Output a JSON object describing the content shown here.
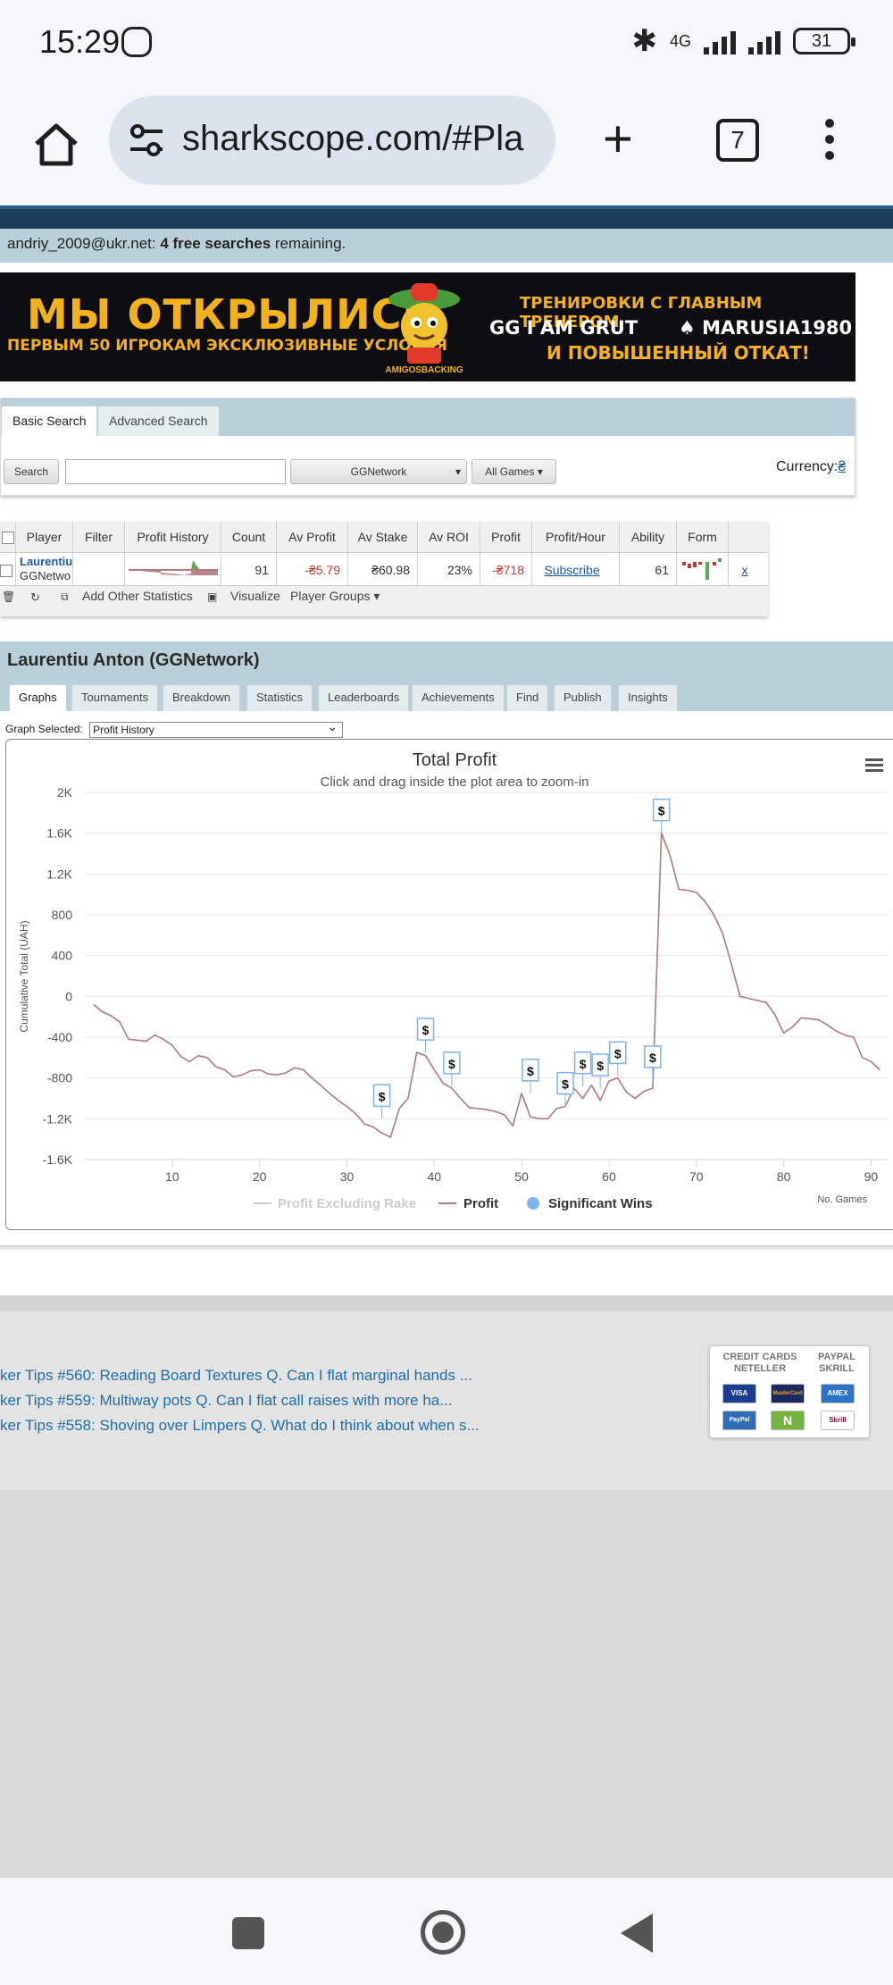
{
  "status_bar": {
    "time": "15:29",
    "network": "4G",
    "battery": "31"
  },
  "browser": {
    "url": "sharkscope.com/#Pla",
    "tab_count": "7"
  },
  "site": {
    "account_email": "andriy_2009@ukr.net:",
    "free_searches": "4 free searches",
    "remaining": "remaining."
  },
  "banner": {
    "headline": "МЫ ОТКРЫЛИСЬ",
    "subline": "ПЕРВЫМ 50 ИГРОКАМ ЭКСКЛЮЗИВНЫЕ УСЛОВИЯ",
    "brand": "AMIGOSBACKING",
    "right_line1": "ТРЕНИРОВКИ С ГЛАВНЫМ ТРЕНЕРОМ",
    "right_line2a": "GG I AM GRUT",
    "right_line2b": "♠ MARUSIA1980",
    "right_line3": "И ПОВЫШЕННЫЙ ОТКАТ!"
  },
  "search": {
    "tab_basic": "Basic Search",
    "tab_advanced": "Advanced Search",
    "search_button": "Search",
    "network_select": "GGNetwork",
    "games_select": "All Games",
    "currency_label": "Currency:",
    "currency_value": "₴"
  },
  "player_table": {
    "headers": [
      "Player",
      "Filter",
      "Profit History",
      "Count",
      "Av Profit",
      "Av Stake",
      "Av ROI",
      "Profit",
      "Profit/Hour",
      "Ability",
      "Form"
    ],
    "row": {
      "player_name": "Laurentiu",
      "player_network": "GGNetwo",
      "count": "91",
      "av_profit": "-₴5.79",
      "av_stake": "₴60.98",
      "av_roi": "23%",
      "profit": "-₴718",
      "profit_hour": "Subscribe",
      "ability": "61",
      "remove": "x"
    },
    "toolbar": {
      "add_stats": "Add Other Statistics",
      "visualize": "Visualize",
      "player_groups": "Player Groups"
    }
  },
  "player_detail": {
    "title": "Laurentiu Anton (GGNetwork)",
    "tabs": [
      "Graphs",
      "Tournaments",
      "Breakdown",
      "Statistics",
      "Leaderboards",
      "Achievements",
      "Find",
      "Publish",
      "Insights"
    ],
    "graph_selected_label": "Graph Selected:",
    "graph_selected_value": "Profit History"
  },
  "chart_data": {
    "type": "line",
    "title": "Total Profit",
    "subtitle": "Click and drag inside the plot area to zoom-in",
    "ylabel": "Cumulative Total (UAH)",
    "xlabel": "No. Games",
    "ylim": [
      -1600,
      2000
    ],
    "xlim": [
      0,
      92
    ],
    "y_ticks": [
      "2K",
      "1.6K",
      "1.2K",
      "800",
      "400",
      "0",
      "-400",
      "-800",
      "-1.2K",
      "-1.6K"
    ],
    "x_ticks": [
      "10",
      "20",
      "30",
      "40",
      "50",
      "60",
      "70",
      "80",
      "90"
    ],
    "legend": [
      "Profit Excluding Rake",
      "Profit",
      "Significant Wins"
    ],
    "legend_position": "bottom",
    "colors": {
      "profit": "#b07a7e",
      "rake": "#cccccc",
      "wins": "#7cb5ec"
    },
    "series": [
      {
        "name": "Profit",
        "x": [
          1,
          2,
          3,
          4,
          5,
          6,
          7,
          8,
          9,
          10,
          11,
          12,
          13,
          14,
          15,
          16,
          17,
          18,
          19,
          20,
          21,
          22,
          23,
          24,
          25,
          26,
          27,
          28,
          29,
          30,
          31,
          32,
          33,
          34,
          35,
          36,
          37,
          38,
          39,
          40,
          41,
          42,
          43,
          44,
          45,
          46,
          47,
          48,
          49,
          50,
          51,
          52,
          53,
          54,
          55,
          56,
          57,
          58,
          59,
          60,
          61,
          62,
          63,
          64,
          65,
          66,
          67,
          68,
          69,
          70,
          71,
          72,
          73,
          74,
          75,
          76,
          77,
          78,
          79,
          80,
          81,
          82,
          83,
          84,
          85,
          86,
          87,
          88,
          89,
          90,
          91
        ],
        "values": [
          -80,
          -150,
          -190,
          -250,
          -420,
          -430,
          -440,
          -380,
          -420,
          -480,
          -590,
          -640,
          -580,
          -600,
          -690,
          -720,
          -790,
          -770,
          -730,
          -720,
          -760,
          -770,
          -750,
          -700,
          -720,
          -800,
          -870,
          -950,
          -1020,
          -1080,
          -1150,
          -1250,
          -1280,
          -1340,
          -1380,
          -1100,
          -1000,
          -550,
          -580,
          -720,
          -850,
          -900,
          -1000,
          -1090,
          -1100,
          -1110,
          -1130,
          -1160,
          -1270,
          -950,
          -1180,
          -1200,
          -1200,
          -1100,
          -1080,
          -900,
          -1000,
          -870,
          -1020,
          -830,
          -800,
          -940,
          -1000,
          -930,
          -900,
          1600,
          1380,
          1050,
          1040,
          1020,
          930,
          800,
          620,
          320,
          0,
          -20,
          -40,
          -60,
          -180,
          -360,
          -300,
          -210,
          -220,
          -230,
          -280,
          -340,
          -380,
          -400,
          -600,
          -640,
          -720
        ]
      }
    ],
    "significant_wins": [
      {
        "x": 34,
        "y": -1200
      },
      {
        "x": 39,
        "y": -550
      },
      {
        "x": 42,
        "y": -880
      },
      {
        "x": 51,
        "y": -950
      },
      {
        "x": 55,
        "y": -1080
      },
      {
        "x": 57,
        "y": -880
      },
      {
        "x": 59,
        "y": -900
      },
      {
        "x": 61,
        "y": -780
      },
      {
        "x": 65,
        "y": -820
      },
      {
        "x": 66,
        "y": 1600
      }
    ],
    "marker_label": "$"
  },
  "footer": {
    "links": [
      "ker Tips #560: Reading Board Textures Q. Can I flat marginal hands ...",
      "ker Tips #559: Multiway pots Q. Can I flat call raises with more ha...",
      "ker Tips #558: Shoving over Limpers Q. What do I think about when s..."
    ],
    "payments": {
      "label_left": "CREDIT CARDS NETELLER",
      "label_right": "PAYPAL SKRILL",
      "cards": [
        "VISA",
        "MasterCard",
        "AMEX",
        "PayPal",
        "N",
        "Skrill"
      ]
    }
  }
}
